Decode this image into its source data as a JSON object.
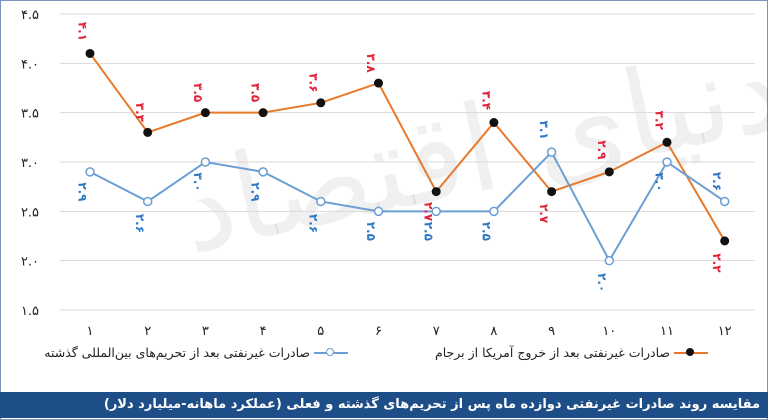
{
  "chart_data": {
    "type": "line",
    "categories": [
      "۱",
      "۲",
      "۳",
      "۴",
      "۵",
      "۶",
      "۷",
      "۸",
      "۹",
      "۱۰",
      "۱۱",
      "۱۲"
    ],
    "ylim": [
      1.5,
      4.5
    ],
    "yticks": [
      "۴.۵",
      "۴.۰",
      "۳.۵",
      "۳.۰",
      "۲.۵",
      "۲.۰",
      "۱.۵"
    ],
    "ytick_values": [
      4.5,
      4.0,
      3.5,
      3.0,
      2.5,
      2.0,
      1.5
    ],
    "grid": "horizontal",
    "legend_position": "bottom",
    "series": [
      {
        "name": "صادرات غیرنفتی بعد از خروج آمریکا از برجام",
        "values": [
          4.1,
          3.3,
          3.5,
          3.5,
          3.6,
          3.8,
          2.7,
          3.4,
          2.7,
          2.9,
          3.2,
          2.2
        ],
        "labels": [
          "۴.۱",
          "۳.۳",
          "۳.۵",
          "۳.۵",
          "۳.۶",
          "۳.۸",
          "۲.۷",
          "۳.۴",
          "۲.۷",
          "۲.۹",
          "۳.۲",
          "۲.۲"
        ],
        "color": "#e8792b",
        "label_color": "#e0253a",
        "marker": "filled"
      },
      {
        "name": "صادرات غیرنفتی بعد از تحریم‌های بین‌المللی گذشته",
        "values": [
          2.9,
          2.6,
          3.0,
          2.9,
          2.6,
          2.5,
          2.5,
          2.5,
          3.1,
          2.0,
          3.0,
          2.6
        ],
        "labels": [
          "۲.۹",
          "۲.۶",
          "۳.۰",
          "۲.۹",
          "۲.۶",
          "۲.۵",
          "۲.۵",
          "۲.۵",
          "۳.۱",
          "۲.۰",
          "۳.۰",
          "۲.۶"
        ],
        "color": "#6b9fd4",
        "label_color": "#2f78c4",
        "marker": "hollow"
      }
    ]
  },
  "watermark": "دنیای اقتصاد",
  "caption": "مقایسه روند صادرات غیرنفتی دوازده ماه پس از تحریم‌های گذشته و فعلی (عملکرد ماهانه-میلیارد دلار)"
}
